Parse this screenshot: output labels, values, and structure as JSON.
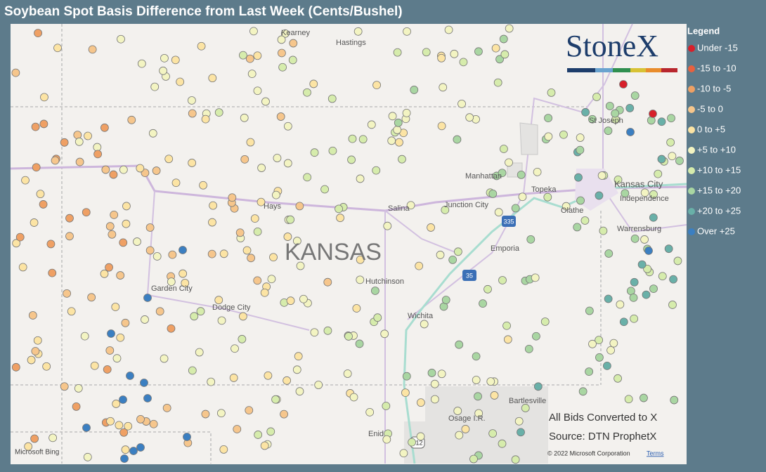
{
  "title": "Soybean Spot Basis Difference from Last Week (Cents/Bushel)",
  "legend": {
    "title": "Legend",
    "items": [
      {
        "label": "Under -15",
        "color": "#d7202a"
      },
      {
        "label": "-15 to -10",
        "color": "#e8613f"
      },
      {
        "label": "-10 to -5",
        "color": "#efa064"
      },
      {
        "label": "-5 to 0",
        "color": "#f6c68c"
      },
      {
        "label": "0 to +5",
        "color": "#fce4a4"
      },
      {
        "label": "+5 to +10",
        "color": "#f3f4c2"
      },
      {
        "label": "+10 to +15",
        "color": "#d6ecac"
      },
      {
        "label": "+15 to +20",
        "color": "#a9d6a2"
      },
      {
        "label": "+20 to +25",
        "color": "#69b0a8"
      },
      {
        "label": "Over +25",
        "color": "#3b7fc1"
      }
    ]
  },
  "map": {
    "state_label": "KANSAS",
    "places": [
      "Kearney",
      "Hastings",
      "St Joseph",
      "Manhattan",
      "Topeka",
      "Kansas City",
      "Independence",
      "Olathe",
      "Hays",
      "Salina",
      "Junction City",
      "Warrensburg",
      "Emporia",
      "Garden City",
      "Dodge City",
      "Hutchinson",
      "Wichita",
      "Osage I.R.",
      "Bartlesville",
      "Enid"
    ],
    "shields": [
      "335",
      "35",
      "412"
    ]
  },
  "notes": [
    "All Bids Converted to X",
    "Source: DTN ProphetX"
  ],
  "logo": "StoneX",
  "attribution": {
    "provider": "Microsoft Bing",
    "copyright": "© 2022 Microsoft Corporation",
    "terms": "Terms"
  }
}
